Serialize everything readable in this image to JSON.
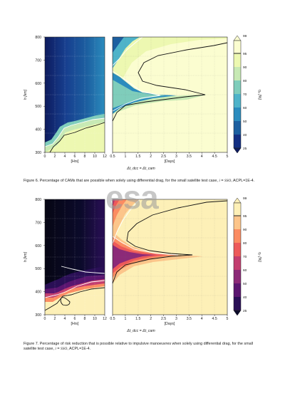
{
  "watermark": {
    "text": "esa"
  },
  "figures": [
    {
      "id": "fig6",
      "caption_html": "Figure 6. Percentage of CAMs that are possible when solely using differential drag, for the small satellite test case, <i>i</i> = <i>SSO</i>, ACPL=1E-4.",
      "y_label": "h [km]",
      "x_label_left": "[Hrs]",
      "x_label_right": "[Days]",
      "x_shared_label": "Δt_dcc = Δt_cam",
      "cbar_label": "η₆ [%]",
      "cbar_ticks": [
        "99",
        "95",
        "90",
        "80",
        "70",
        "60",
        "50",
        "40",
        "25"
      ]
    },
    {
      "id": "fig7",
      "caption_html": "Figure 7. Percentage of risk reduction that is possible relative to impulsive manoeuvres when solely using differential drag, for the small satellite test case, <i>i</i> = <i>SSO</i>, ACPL=1E-4.",
      "y_label": "h [km]",
      "x_label_left": "[Hrs]",
      "x_label_right": "[Days]",
      "x_shared_label": "Δt_dcc = Δt_cam",
      "cbar_label": "η₇ [%]",
      "cbar_ticks": [
        "99",
        "95",
        "90",
        "80",
        "70",
        "60",
        "50",
        "40",
        "25"
      ]
    }
  ],
  "axes": {
    "y_ticks": [
      "800",
      "700",
      "600",
      "500",
      "400",
      "300"
    ],
    "x_ticks_hours": [
      "0",
      "2",
      "4",
      "6",
      "8",
      "10",
      "12"
    ],
    "x_ticks_days": [
      "0.5",
      "1",
      "1.5",
      "2",
      "2.5",
      "3",
      "3.5",
      "4",
      "4.5",
      "5"
    ]
  },
  "colors": {
    "fig6_scale": [
      "#0d1b5e",
      "#132f83",
      "#1c5fa0",
      "#2b8cbe",
      "#4eb3c9",
      "#7fcdbb",
      "#c7e9b4",
      "#edf8b1",
      "#fbfdd0"
    ],
    "fig7_scale": [
      "#0b0a2a",
      "#2a0f56",
      "#5b1670",
      "#8c2a78",
      "#c33e6f",
      "#ed5a5a",
      "#fb8c62",
      "#fcc58a",
      "#fdf0b7"
    ]
  }
}
